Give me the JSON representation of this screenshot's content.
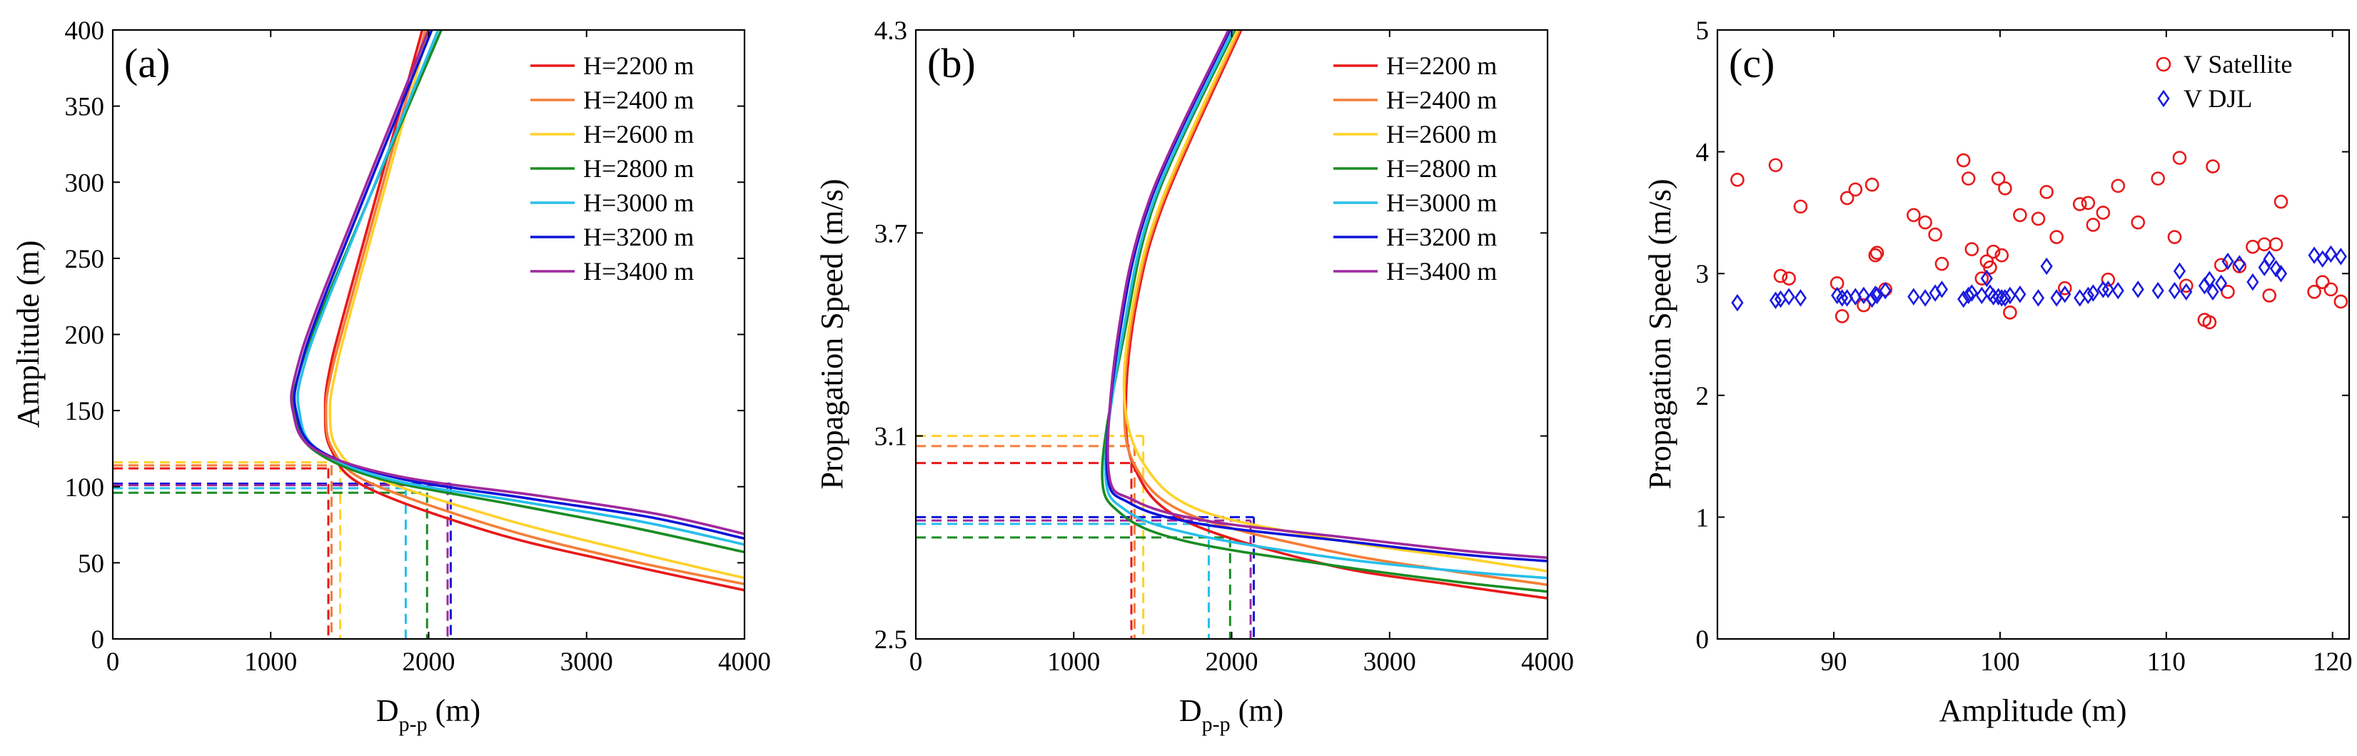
{
  "chart_data": [
    {
      "type": "line",
      "panel_label": "(a)",
      "title": "",
      "xlabel_main": "D",
      "xlabel_sub": "p-p",
      "xlabel_unit": " (m)",
      "ylabel": "Amplitude (m)",
      "xlim": [
        0,
        4000
      ],
      "ylim": [
        0,
        400
      ],
      "xticks": [
        0,
        1000,
        2000,
        3000,
        4000
      ],
      "yticks": [
        0,
        50,
        100,
        150,
        200,
        250,
        300,
        350,
        400
      ],
      "xtick_labels": [
        "0",
        "1000",
        "2000",
        "3000",
        "4000"
      ],
      "ytick_labels": [
        "0",
        "50",
        "100",
        "150",
        "200",
        "250",
        "300",
        "350",
        "400"
      ],
      "legend_position": "top-right",
      "series": [
        {
          "name": "H=2200 m",
          "color": "#e8191a",
          "points": [
            [
              1960,
              400
            ],
            [
              1480,
              220
            ],
            [
              1370,
              175
            ],
            [
              1345,
              150
            ],
            [
              1380,
              125
            ],
            [
              1600,
              100
            ],
            [
              2400,
              70
            ],
            [
              3200,
              50
            ],
            [
              4000,
              32
            ]
          ],
          "marker_y": 112,
          "marker_x": 1365
        },
        {
          "name": "H=2400 m",
          "color": "#f57e38",
          "points": [
            [
              1980,
              400
            ],
            [
              1500,
              220
            ],
            [
              1385,
              175
            ],
            [
              1350,
              150
            ],
            [
              1390,
              125
            ],
            [
              1620,
              103
            ],
            [
              2450,
              73
            ],
            [
              3250,
              52
            ],
            [
              4000,
              36
            ]
          ],
          "marker_y": 114,
          "marker_x": 1385
        },
        {
          "name": "H=2600 m",
          "color": "#ffd12b",
          "points": [
            [
              2000,
              400
            ],
            [
              1520,
              220
            ],
            [
              1410,
              175
            ],
            [
              1375,
              150
            ],
            [
              1420,
              125
            ],
            [
              1660,
              106
            ],
            [
              2500,
              78
            ],
            [
              3300,
              57
            ],
            [
              4000,
              40
            ]
          ],
          "marker_y": 116,
          "marker_x": 1440
        },
        {
          "name": "H=2800 m",
          "color": "#1a8c23",
          "points": [
            [
              2080,
              400
            ],
            [
              1380,
              230
            ],
            [
              1180,
              175
            ],
            [
              1150,
              150
            ],
            [
              1260,
              125
            ],
            [
              1700,
              105
            ],
            [
              2550,
              88
            ],
            [
              3300,
              73
            ],
            [
              4000,
              57
            ]
          ],
          "marker_y": 96,
          "marker_x": 1990
        },
        {
          "name": "H=3000 m",
          "color": "#26bfea",
          "points": [
            [
              2060,
              400
            ],
            [
              1390,
              230
            ],
            [
              1200,
              175
            ],
            [
              1180,
              150
            ],
            [
              1290,
              125
            ],
            [
              1750,
              105
            ],
            [
              2600,
              90
            ],
            [
              3350,
              77
            ],
            [
              4000,
              62
            ]
          ],
          "marker_y": 99,
          "marker_x": 1855
        },
        {
          "name": "H=3200 m",
          "color": "#0d15d9",
          "points": [
            [
              2020,
              400
            ],
            [
              1360,
              230
            ],
            [
              1180,
              175
            ],
            [
              1160,
              150
            ],
            [
              1290,
              125
            ],
            [
              1790,
              106
            ],
            [
              2650,
              92
            ],
            [
              3400,
              80
            ],
            [
              4000,
              66
            ]
          ],
          "marker_y": 102,
          "marker_x": 2140
        },
        {
          "name": "H=3400 m",
          "color": "#a0289d",
          "points": [
            [
              2000,
              400
            ],
            [
              1340,
              230
            ],
            [
              1160,
              175
            ],
            [
              1140,
              150
            ],
            [
              1270,
              125
            ],
            [
              1800,
              107
            ],
            [
              2700,
              94
            ],
            [
              3450,
              82
            ],
            [
              4000,
              69
            ]
          ],
          "marker_y": 101,
          "marker_x": 2120
        }
      ]
    },
    {
      "type": "line",
      "panel_label": "(b)",
      "title": "",
      "xlabel_main": "D",
      "xlabel_sub": "p-p",
      "xlabel_unit": " (m)",
      "ylabel": "Propagation Speed (m/s)",
      "xlim": [
        0,
        4000
      ],
      "ylim": [
        2.5,
        4.3
      ],
      "xticks": [
        0,
        1000,
        2000,
        3000,
        4000
      ],
      "yticks": [
        2.5,
        3.1,
        3.7,
        4.3
      ],
      "xtick_labels": [
        "0",
        "1000",
        "2000",
        "3000",
        "4000"
      ],
      "ytick_labels": [
        "2.5",
        "3.1",
        "3.7",
        "4.3"
      ],
      "legend_position": "top-right",
      "series": [
        {
          "name": "H=2200 m",
          "color": "#e8191a",
          "points": [
            [
              2060,
              4.3
            ],
            [
              1580,
              3.8
            ],
            [
              1400,
              3.5
            ],
            [
              1330,
              3.2
            ],
            [
              1390,
              3.0
            ],
            [
              1700,
              2.85
            ],
            [
              2600,
              2.72
            ],
            [
              3400,
              2.66
            ],
            [
              4000,
              2.62
            ]
          ],
          "marker_y": 3.02,
          "marker_x": 1365
        },
        {
          "name": "H=2400 m",
          "color": "#f57e38",
          "points": [
            [
              2050,
              4.3
            ],
            [
              1570,
              3.8
            ],
            [
              1390,
              3.5
            ],
            [
              1320,
              3.2
            ],
            [
              1390,
              3.01
            ],
            [
              1720,
              2.87
            ],
            [
              2620,
              2.76
            ],
            [
              3400,
              2.7
            ],
            [
              4000,
              2.66
            ]
          ],
          "marker_y": 3.07,
          "marker_x": 1385
        },
        {
          "name": "H=2600 m",
          "color": "#ffd12b",
          "points": [
            [
              2040,
              4.3
            ],
            [
              1560,
              3.8
            ],
            [
              1380,
              3.5
            ],
            [
              1320,
              3.22
            ],
            [
              1440,
              3.02
            ],
            [
              1800,
              2.88
            ],
            [
              2700,
              2.79
            ],
            [
              3450,
              2.74
            ],
            [
              4000,
              2.7
            ]
          ],
          "marker_y": 3.1,
          "marker_x": 1440
        },
        {
          "name": "H=2800 m",
          "color": "#1a8c23",
          "points": [
            [
              2020,
              4.3
            ],
            [
              1520,
              3.8
            ],
            [
              1320,
              3.4
            ],
            [
              1180,
              3.0
            ],
            [
              1300,
              2.87
            ],
            [
              1700,
              2.79
            ],
            [
              2600,
              2.72
            ],
            [
              3400,
              2.67
            ],
            [
              4000,
              2.64
            ]
          ],
          "marker_y": 2.8,
          "marker_x": 1990
        },
        {
          "name": "H=3000 m",
          "color": "#26bfea",
          "points": [
            [
              2010,
              4.3
            ],
            [
              1510,
              3.8
            ],
            [
              1310,
              3.4
            ],
            [
              1200,
              3.0
            ],
            [
              1330,
              2.88
            ],
            [
              1750,
              2.81
            ],
            [
              2650,
              2.74
            ],
            [
              3450,
              2.7
            ],
            [
              4000,
              2.68
            ]
          ],
          "marker_y": 2.84,
          "marker_x": 1855
        },
        {
          "name": "H=3200 m",
          "color": "#0d15d9",
          "points": [
            [
              1990,
              4.3
            ],
            [
              1490,
              3.8
            ],
            [
              1290,
              3.4
            ],
            [
              1210,
              3.0
            ],
            [
              1360,
              2.9
            ],
            [
              1800,
              2.84
            ],
            [
              2700,
              2.79
            ],
            [
              3450,
              2.75
            ],
            [
              4000,
              2.73
            ]
          ],
          "marker_y": 2.86,
          "marker_x": 2140
        },
        {
          "name": "H=3400 m",
          "color": "#a0289d",
          "points": [
            [
              1980,
              4.3
            ],
            [
              1480,
              3.8
            ],
            [
              1280,
              3.4
            ],
            [
              1220,
              3.0
            ],
            [
              1380,
              2.91
            ],
            [
              1830,
              2.85
            ],
            [
              2720,
              2.8
            ],
            [
              3480,
              2.76
            ],
            [
              4000,
              2.74
            ]
          ],
          "marker_y": 2.85,
          "marker_x": 2120
        }
      ]
    },
    {
      "type": "scatter",
      "panel_label": "(c)",
      "title": "",
      "xlabel": "Amplitude (m)",
      "ylabel": "Propagation Speed (m/s)",
      "xlim": [
        83,
        121
      ],
      "ylim": [
        0,
        5
      ],
      "xticks": [
        90,
        100,
        110,
        120
      ],
      "yticks": [
        0,
        1,
        2,
        3,
        4,
        5
      ],
      "xtick_labels": [
        "90",
        "100",
        "110",
        "120"
      ],
      "ytick_labels": [
        "0",
        "1",
        "2",
        "3",
        "4",
        "5"
      ],
      "legend_position": "top-right",
      "series": [
        {
          "name": "V Satellite",
          "color": "#e8191a",
          "marker": "circle",
          "x": [
            84.2,
            86.5,
            86.8,
            87.3,
            88.0,
            90.2,
            90.5,
            90.8,
            91.3,
            91.8,
            92.3,
            92.5,
            92.6,
            93.1,
            94.8,
            95.5,
            96.1,
            96.5,
            97.8,
            98.1,
            98.3,
            98.9,
            99.2,
            99.4,
            99.6,
            99.9,
            100.1,
            100.3,
            100.6,
            101.2,
            102.3,
            102.8,
            103.4,
            103.9,
            104.8,
            105.3,
            105.6,
            106.2,
            106.5,
            107.1,
            108.3,
            109.5,
            110.5,
            110.8,
            111.2,
            112.3,
            112.6,
            112.8,
            113.3,
            113.7,
            114.4,
            115.2,
            115.9,
            116.2,
            116.6,
            116.9,
            118.9,
            119.4,
            119.9,
            120.5
          ],
          "y": [
            3.77,
            3.89,
            2.98,
            2.96,
            3.55,
            2.92,
            2.65,
            3.62,
            3.69,
            2.74,
            3.73,
            3.15,
            3.17,
            2.87,
            3.48,
            3.42,
            3.32,
            3.08,
            3.93,
            3.78,
            3.2,
            2.96,
            3.1,
            3.05,
            3.18,
            3.78,
            3.15,
            3.7,
            2.68,
            3.48,
            3.45,
            3.67,
            3.3,
            2.88,
            3.57,
            3.58,
            3.4,
            3.5,
            2.95,
            3.72,
            3.42,
            3.78,
            3.3,
            3.95,
            2.9,
            2.62,
            2.6,
            3.88,
            3.07,
            2.85,
            3.06,
            3.22,
            3.24,
            2.82,
            3.24,
            3.59,
            2.85,
            2.93,
            2.87,
            2.77
          ]
        },
        {
          "name": "V DJL",
          "color": "#1a1ae0",
          "marker": "diamond",
          "x": [
            84.2,
            86.5,
            86.8,
            87.3,
            88.0,
            90.2,
            90.5,
            90.8,
            91.3,
            91.8,
            92.3,
            92.5,
            92.6,
            93.1,
            94.8,
            95.5,
            96.1,
            96.5,
            97.8,
            98.1,
            98.3,
            98.9,
            99.2,
            99.4,
            99.6,
            99.9,
            100.1,
            100.3,
            100.6,
            101.2,
            102.3,
            102.8,
            103.4,
            103.9,
            104.8,
            105.3,
            105.6,
            106.2,
            106.5,
            107.1,
            108.3,
            109.5,
            110.5,
            110.8,
            111.2,
            112.3,
            112.6,
            112.8,
            113.3,
            113.7,
            114.4,
            115.2,
            115.9,
            116.2,
            116.6,
            116.9,
            118.9,
            119.4,
            119.9,
            120.5
          ],
          "y": [
            2.76,
            2.78,
            2.79,
            2.81,
            2.8,
            2.82,
            2.8,
            2.8,
            2.81,
            2.82,
            2.79,
            2.83,
            2.82,
            2.86,
            2.81,
            2.8,
            2.84,
            2.87,
            2.79,
            2.82,
            2.84,
            2.82,
            2.96,
            2.84,
            2.81,
            2.81,
            2.8,
            2.8,
            2.82,
            2.83,
            2.8,
            3.06,
            2.8,
            2.83,
            2.8,
            2.82,
            2.84,
            2.87,
            2.87,
            2.86,
            2.87,
            2.86,
            2.86,
            3.02,
            2.85,
            2.9,
            2.95,
            2.85,
            2.92,
            3.1,
            3.08,
            2.93,
            3.05,
            3.12,
            3.04,
            3.0,
            3.15,
            3.12,
            3.16,
            3.14
          ]
        }
      ]
    }
  ]
}
